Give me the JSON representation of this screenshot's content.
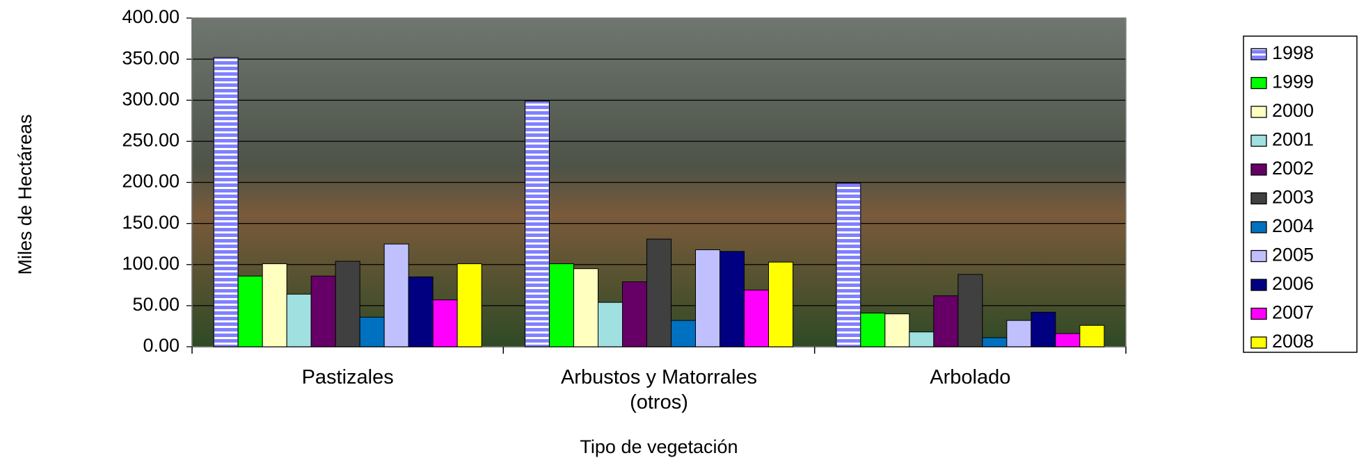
{
  "chart_data": {
    "type": "bar",
    "y_label": "Miles de Hectáreas",
    "x_label": "Tipo de vegetación",
    "categories": [
      "Pastizales",
      "Arbustos y Matorrales (otros)",
      "Arbolado"
    ],
    "series": [
      {
        "name": "1998",
        "color": "#8080ff",
        "pattern": "horizontal-stripes",
        "values": [
          352,
          299,
          199
        ]
      },
      {
        "name": "1999",
        "color": "#00ff00",
        "values": [
          86,
          101,
          41
        ]
      },
      {
        "name": "2000",
        "color": "#ffffc0",
        "values": [
          101,
          95,
          40
        ]
      },
      {
        "name": "2001",
        "color": "#a0e0e0",
        "values": [
          64,
          54,
          18
        ]
      },
      {
        "name": "2002",
        "color": "#660066",
        "values": [
          86,
          79,
          62
        ]
      },
      {
        "name": "2003",
        "color": "#404040",
        "values": [
          104,
          131,
          88
        ]
      },
      {
        "name": "2004",
        "color": "#0070c0",
        "values": [
          36,
          32,
          11
        ]
      },
      {
        "name": "2005",
        "color": "#c0c0ff",
        "values": [
          125,
          118,
          32
        ]
      },
      {
        "name": "2006",
        "color": "#000080",
        "values": [
          85,
          116,
          42
        ]
      },
      {
        "name": "2007",
        "color": "#ff00ff",
        "values": [
          57,
          69,
          16
        ]
      },
      {
        "name": "2008",
        "color": "#ffff00",
        "values": [
          101,
          103,
          26
        ]
      }
    ],
    "ylim": [
      0,
      400
    ],
    "yticks": [
      {
        "value": 0,
        "label": "0.00"
      },
      {
        "value": 50,
        "label": "50.00"
      },
      {
        "value": 100,
        "label": "100.00"
      },
      {
        "value": 150,
        "label": "150.00"
      },
      {
        "value": 200,
        "label": "200.00"
      },
      {
        "value": 250,
        "label": "250.00"
      },
      {
        "value": 300,
        "label": "300.00"
      },
      {
        "value": 350,
        "label": "350.00"
      },
      {
        "value": 400,
        "label": "400.00"
      }
    ],
    "grid": true,
    "legend": "right"
  }
}
